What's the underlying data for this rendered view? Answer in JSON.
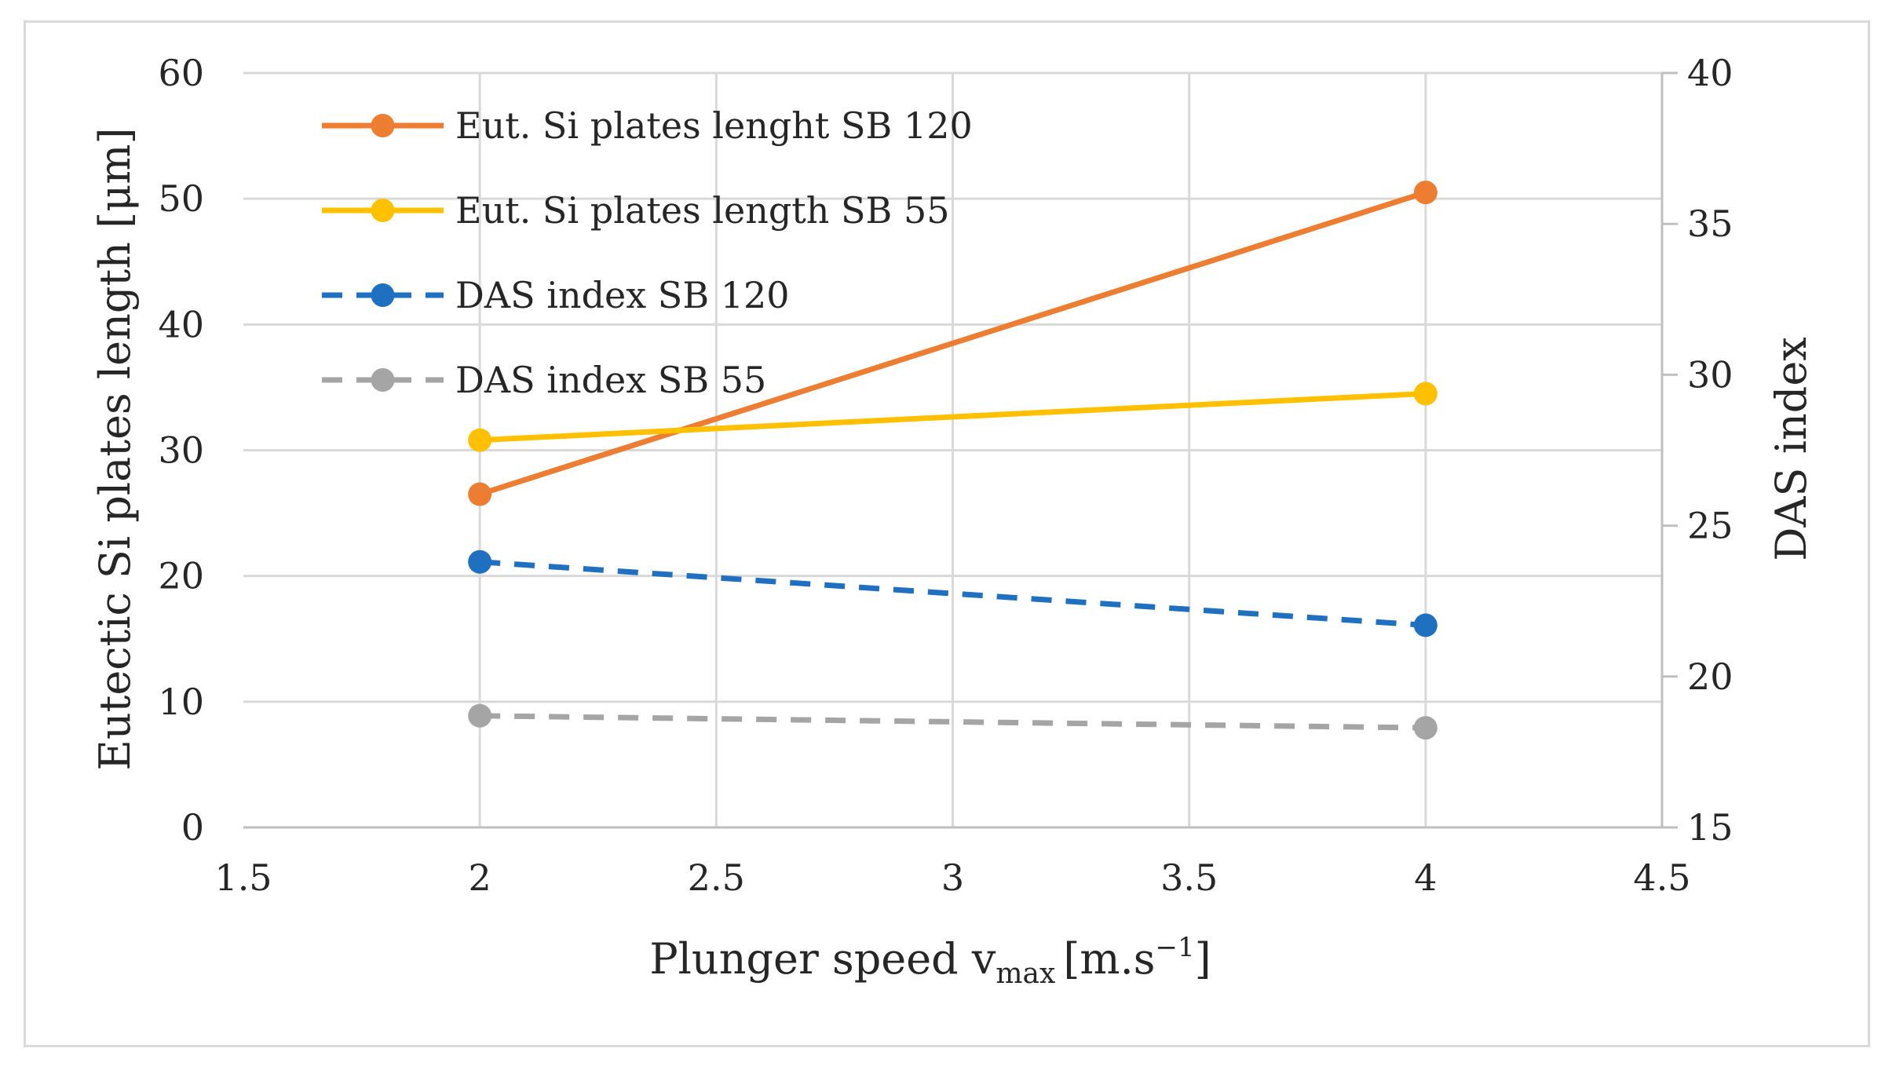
{
  "chart_data": {
    "type": "line",
    "x_axis": {
      "label_main": "Plunger speed v",
      "label_sub": "max",
      "label_bracket_open": "[m.s",
      "label_sup": "−1",
      "label_bracket_close": "]",
      "range": [
        1.5,
        4.5
      ],
      "ticks": [
        1.5,
        2,
        2.5,
        3,
        3.5,
        4,
        4.5
      ],
      "tick_labels": [
        "1.5",
        "2",
        "2.5",
        "3",
        "3.5",
        "4",
        "4.5"
      ]
    },
    "y_axis_left": {
      "label": "Eutectic Si plates length [μm]",
      "range": [
        0,
        60
      ],
      "ticks": [
        0,
        10,
        20,
        30,
        40,
        50,
        60
      ],
      "tick_labels": [
        "0",
        "10",
        "20",
        "30",
        "40",
        "50",
        "60"
      ]
    },
    "y_axis_right": {
      "label": "DAS index",
      "range": [
        15,
        40
      ],
      "ticks": [
        15,
        20,
        25,
        30,
        35,
        40
      ],
      "tick_labels": [
        "15",
        "20",
        "25",
        "30",
        "35",
        "40"
      ]
    },
    "grid": true,
    "legend_position": "top-left",
    "series": [
      {
        "name": "Eut. Si plates lenght SB 120",
        "axis": "left",
        "x": [
          2,
          4
        ],
        "values": [
          26.5,
          50.5
        ],
        "color": "#ED7D31",
        "dashed": false
      },
      {
        "name": "Eut. Si plates length SB 55",
        "axis": "left",
        "x": [
          2,
          4
        ],
        "values": [
          30.8,
          34.5
        ],
        "color": "#FFC000",
        "dashed": false
      },
      {
        "name": "DAS index SB 120",
        "axis": "right",
        "x": [
          2,
          4
        ],
        "values": [
          23.8,
          21.7
        ],
        "color": "#1F70C1",
        "dashed": true
      },
      {
        "name": "DAS index SB 55",
        "axis": "right",
        "x": [
          2,
          4
        ],
        "values": [
          18.7,
          18.3
        ],
        "color": "#A5A5A5",
        "dashed": true
      }
    ]
  }
}
